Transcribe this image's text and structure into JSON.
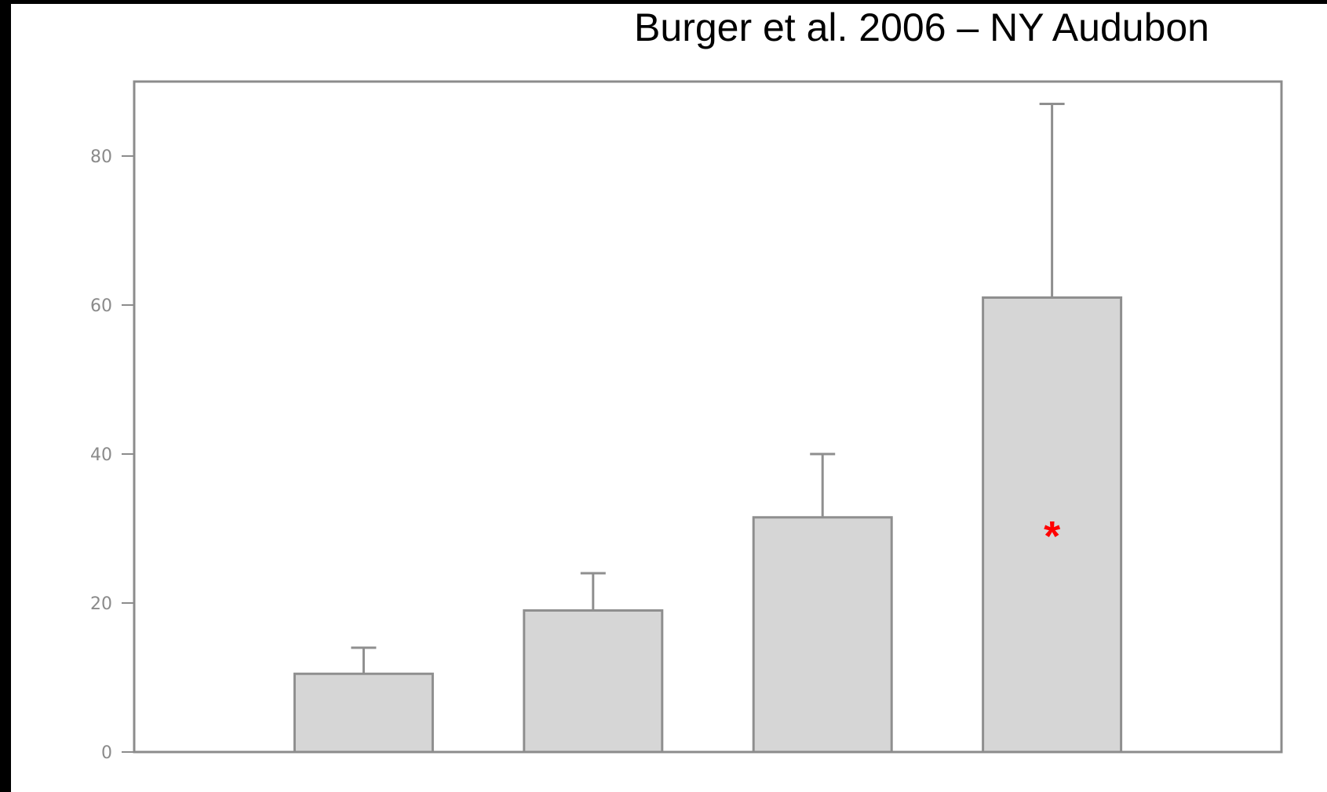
{
  "header": {
    "source": "Burger et al. 2006 – NY Audubon"
  },
  "colors": {
    "bar_fill": "#d6d6d6",
    "bar_stroke": "#8f8f8f",
    "error_bar": "#8f8f8f",
    "frame": "#8c8c8c",
    "tick_label": "#8a8a8a",
    "significance": "#ff0000",
    "page_border": "#000000"
  },
  "chart_data": {
    "type": "bar",
    "title": "",
    "xlabel": "",
    "ylabel": "",
    "ylim": [
      0,
      90
    ],
    "yticks": [
      0,
      20,
      40,
      60,
      80
    ],
    "grid": false,
    "categories": [
      "",
      "",
      "",
      ""
    ],
    "values": [
      10.5,
      19,
      31.5,
      61
    ],
    "error_upper": [
      14,
      24,
      40,
      87
    ],
    "annotations": [
      {
        "category_index": 3,
        "text": "*",
        "y": 30
      }
    ]
  }
}
